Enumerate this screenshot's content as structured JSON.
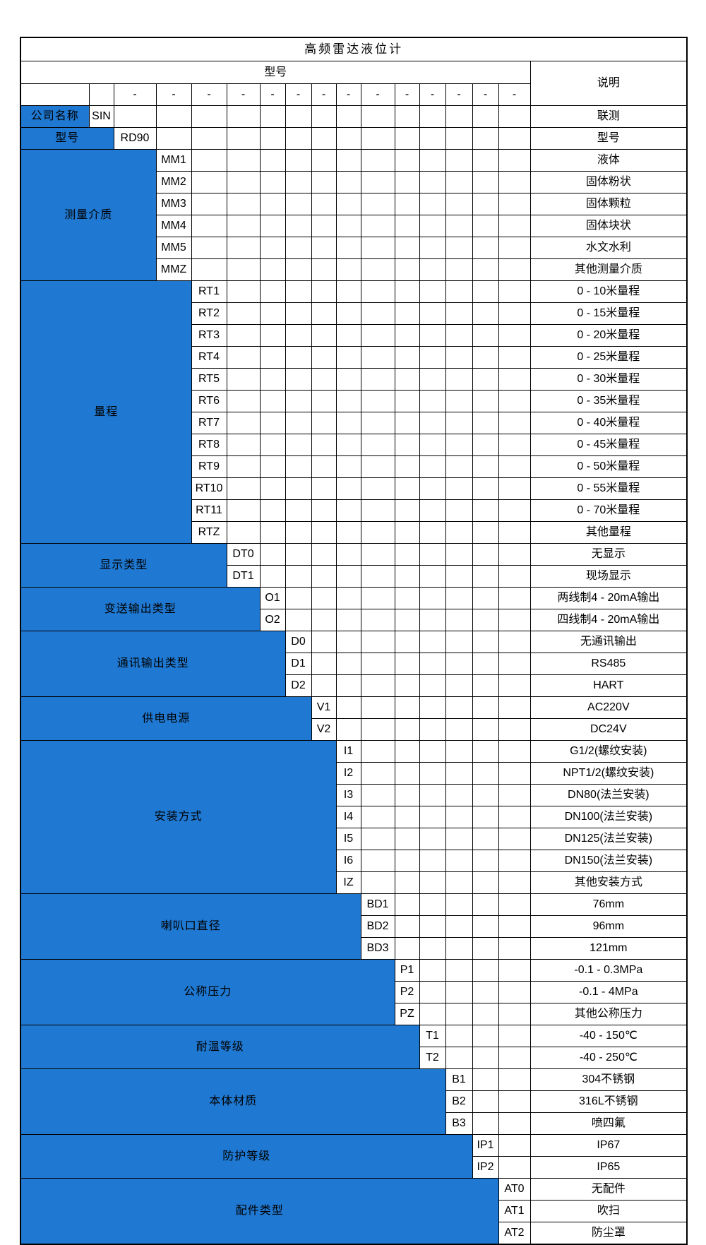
{
  "title": "高频雷达液位计",
  "header": {
    "model_label": "型号",
    "description_label": "说明",
    "dash": "-"
  },
  "colors": {
    "category_fill": "#1F78D1",
    "category_text": "#FFFFFF",
    "grid_line": "#000000",
    "body_text": "#000000",
    "background": "#FFFFFF"
  },
  "sections": [
    {
      "label": "公司名称",
      "options": [
        {
          "code": "SIN",
          "desc": "联测"
        }
      ]
    },
    {
      "label": "型号",
      "options": [
        {
          "code": "RD90",
          "desc": "型号"
        }
      ]
    },
    {
      "label": "测量介质",
      "options": [
        {
          "code": "MM1",
          "desc": "液体"
        },
        {
          "code": "MM2",
          "desc": "固体粉状"
        },
        {
          "code": "MM3",
          "desc": "固体颗粒"
        },
        {
          "code": "MM4",
          "desc": "固体块状"
        },
        {
          "code": "MM5",
          "desc": "水文水利"
        },
        {
          "code": "MMZ",
          "desc": "其他测量介质"
        }
      ]
    },
    {
      "label": "量程",
      "options": [
        {
          "code": "RT1",
          "desc": "0 - 10米量程"
        },
        {
          "code": "RT2",
          "desc": "0 - 15米量程"
        },
        {
          "code": "RT3",
          "desc": "0 - 20米量程"
        },
        {
          "code": "RT4",
          "desc": "0 - 25米量程"
        },
        {
          "code": "RT5",
          "desc": "0 - 30米量程"
        },
        {
          "code": "RT6",
          "desc": "0 - 35米量程"
        },
        {
          "code": "RT7",
          "desc": "0 - 40米量程"
        },
        {
          "code": "RT8",
          "desc": "0 - 45米量程"
        },
        {
          "code": "RT9",
          "desc": "0 - 50米量程"
        },
        {
          "code": "RT10",
          "desc": "0 - 55米量程"
        },
        {
          "code": "RT11",
          "desc": "0 - 70米量程"
        },
        {
          "code": "RTZ",
          "desc": "其他量程"
        }
      ]
    },
    {
      "label": "显示类型",
      "options": [
        {
          "code": "DT0",
          "desc": "无显示"
        },
        {
          "code": "DT1",
          "desc": "现场显示"
        }
      ]
    },
    {
      "label": "变送输出类型",
      "options": [
        {
          "code": "O1",
          "desc": "两线制4 - 20mA输出"
        },
        {
          "code": "O2",
          "desc": "四线制4 - 20mA输出"
        }
      ]
    },
    {
      "label": "通讯输出类型",
      "options": [
        {
          "code": "D0",
          "desc": "无通讯输出"
        },
        {
          "code": "D1",
          "desc": "RS485"
        },
        {
          "code": "D2",
          "desc": "HART"
        }
      ]
    },
    {
      "label": "供电电源",
      "options": [
        {
          "code": "V1",
          "desc": "AC220V"
        },
        {
          "code": "V2",
          "desc": "DC24V"
        }
      ]
    },
    {
      "label": "安装方式",
      "options": [
        {
          "code": "I1",
          "desc": "G1/2(螺纹安装)"
        },
        {
          "code": "I2",
          "desc": "NPT1/2(螺纹安装)"
        },
        {
          "code": "I3",
          "desc": "DN80(法兰安装)"
        },
        {
          "code": "I4",
          "desc": "DN100(法兰安装)"
        },
        {
          "code": "I5",
          "desc": "DN125(法兰安装)"
        },
        {
          "code": "I6",
          "desc": "DN150(法兰安装)"
        },
        {
          "code": "IZ",
          "desc": "其他安装方式"
        }
      ]
    },
    {
      "label": "喇叭口直径",
      "options": [
        {
          "code": "BD1",
          "desc": "76mm"
        },
        {
          "code": "BD2",
          "desc": "96mm"
        },
        {
          "code": "BD3",
          "desc": "121mm"
        }
      ]
    },
    {
      "label": "公称压力",
      "options": [
        {
          "code": "P1",
          "desc": "-0.1 - 0.3MPa"
        },
        {
          "code": "P2",
          "desc": "-0.1 - 4MPa"
        },
        {
          "code": "PZ",
          "desc": "其他公称压力"
        }
      ]
    },
    {
      "label": "耐温等级",
      "options": [
        {
          "code": "T1",
          "desc": "-40 - 150℃"
        },
        {
          "code": "T2",
          "desc": "-40 - 250℃"
        }
      ]
    },
    {
      "label": "本体材质",
      "options": [
        {
          "code": "B1",
          "desc": "304不锈钢"
        },
        {
          "code": "B2",
          "desc": "316L不锈钢"
        },
        {
          "code": "B3",
          "desc": "喷四氟"
        }
      ]
    },
    {
      "label": "防护等级",
      "options": [
        {
          "code": "IP1",
          "desc": "IP67"
        },
        {
          "code": "IP2",
          "desc": "IP65"
        }
      ]
    },
    {
      "label": "配件类型",
      "options": [
        {
          "code": "AT0",
          "desc": "无配件"
        },
        {
          "code": "AT1",
          "desc": "吹扫"
        },
        {
          "code": "AT2",
          "desc": "防尘罩"
        }
      ]
    }
  ]
}
